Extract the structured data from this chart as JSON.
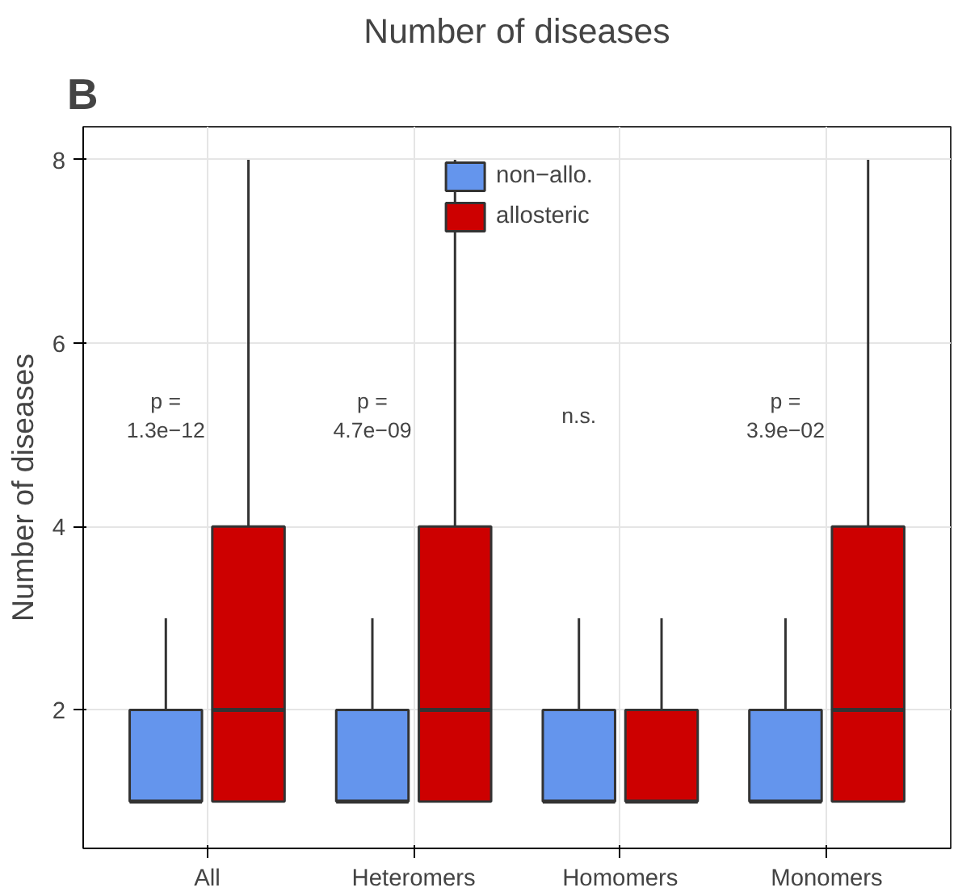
{
  "chart_data": {
    "type": "box",
    "title": "Number of diseases",
    "ylabel": "Number of diseases",
    "categories": [
      "All",
      "Heteromers",
      "Homomers",
      "Monomers"
    ],
    "ylim": [
      0.49,
      8.36
    ],
    "yticks": [
      2,
      4,
      6,
      8
    ],
    "grid": true,
    "legend": "top",
    "series": [
      {
        "name": "non−allo.",
        "color": "#6495ed",
        "boxes": [
          {
            "low": 1,
            "q1": 1,
            "median": 1,
            "q3": 2,
            "high": 3
          },
          {
            "low": 1,
            "q1": 1,
            "median": 1,
            "q3": 2,
            "high": 3
          },
          {
            "low": 1,
            "q1": 1,
            "median": 1,
            "q3": 2,
            "high": 3
          },
          {
            "low": 1,
            "q1": 1,
            "median": 1,
            "q3": 2,
            "high": 3
          }
        ]
      },
      {
        "name": "allosteric",
        "color": "#cd0000",
        "boxes": [
          {
            "low": 1,
            "q1": 1,
            "median": 2,
            "q3": 4,
            "high": 8
          },
          {
            "low": 1,
            "q1": 1,
            "median": 2,
            "q3": 4,
            "high": 8
          },
          {
            "low": 1,
            "q1": 1,
            "median": 1,
            "q3": 2,
            "high": 3
          },
          {
            "low": 1,
            "q1": 1,
            "median": 2,
            "q3": 4,
            "high": 8
          }
        ]
      }
    ],
    "annotations": [
      "B",
      "p =\n1.3e−12",
      "p =\n4.7e−09",
      "n.s.",
      "p =\n3.9e−02"
    ]
  }
}
